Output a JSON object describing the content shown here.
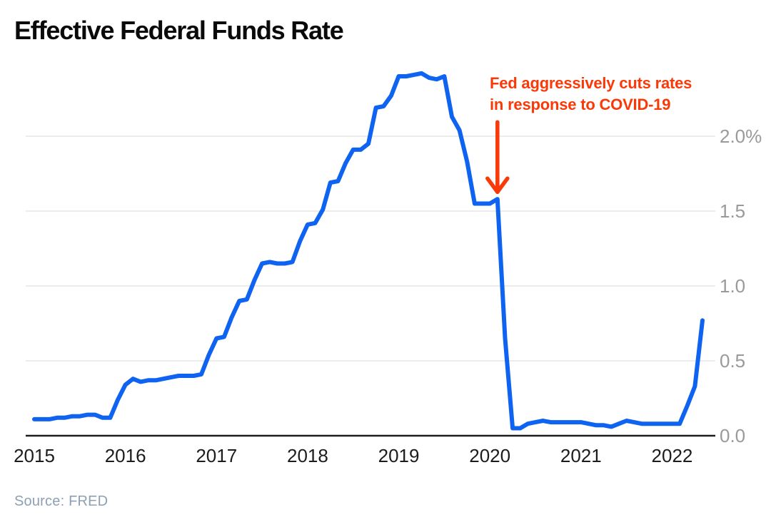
{
  "title": "Effective Federal Funds Rate",
  "source": "Source: FRED",
  "annotation": {
    "line1": "Fed aggressively cuts rates",
    "line2": "in response to COVID-19"
  },
  "colors": {
    "line": "#0e63f0",
    "annotation": "#f93908",
    "grid": "#ececec",
    "axis": "#1c1c1c",
    "x_label": "#1c1c1c",
    "y_label": "#9a9a9a",
    "title": "#0a0a0a",
    "source": "#8da0b4",
    "background": "#ffffff"
  },
  "chart_data": {
    "type": "line",
    "title": "Effective Federal Funds Rate",
    "x_unit": "month",
    "x_start": "2015-01",
    "x_end": "2022-05",
    "x_tick_labels": [
      "2015",
      "2016",
      "2017",
      "2018",
      "2019",
      "2020",
      "2021",
      "2022"
    ],
    "y_ticks": [
      0,
      0.5,
      1.0,
      1.5,
      2.0
    ],
    "y_tick_labels": [
      "0.0",
      "0.5",
      "1.0",
      "1.5",
      "2.0%"
    ],
    "ylim": [
      0,
      2.45
    ],
    "grid": true,
    "legend": false,
    "series": [
      {
        "name": "Effective Federal Funds Rate (%)",
        "values": [
          0.11,
          0.11,
          0.11,
          0.12,
          0.12,
          0.13,
          0.13,
          0.14,
          0.14,
          0.12,
          0.12,
          0.24,
          0.34,
          0.38,
          0.36,
          0.37,
          0.37,
          0.38,
          0.39,
          0.4,
          0.4,
          0.4,
          0.41,
          0.54,
          0.65,
          0.66,
          0.79,
          0.9,
          0.91,
          1.04,
          1.15,
          1.16,
          1.15,
          1.15,
          1.16,
          1.3,
          1.41,
          1.42,
          1.51,
          1.69,
          1.7,
          1.82,
          1.91,
          1.91,
          1.95,
          2.19,
          2.2,
          2.27,
          2.4,
          2.4,
          2.41,
          2.42,
          2.39,
          2.38,
          2.4,
          2.13,
          2.04,
          1.83,
          1.55,
          1.55,
          1.55,
          1.58,
          0.65,
          0.05,
          0.05,
          0.08,
          0.09,
          0.1,
          0.09,
          0.09,
          0.09,
          0.09,
          0.09,
          0.08,
          0.07,
          0.07,
          0.06,
          0.08,
          0.1,
          0.09,
          0.08,
          0.08,
          0.08,
          0.08,
          0.08,
          0.08,
          0.2,
          0.33,
          0.77
        ]
      }
    ],
    "annotation_target": {
      "month": "2020-02",
      "month_index": 61,
      "value": 1.58
    }
  }
}
